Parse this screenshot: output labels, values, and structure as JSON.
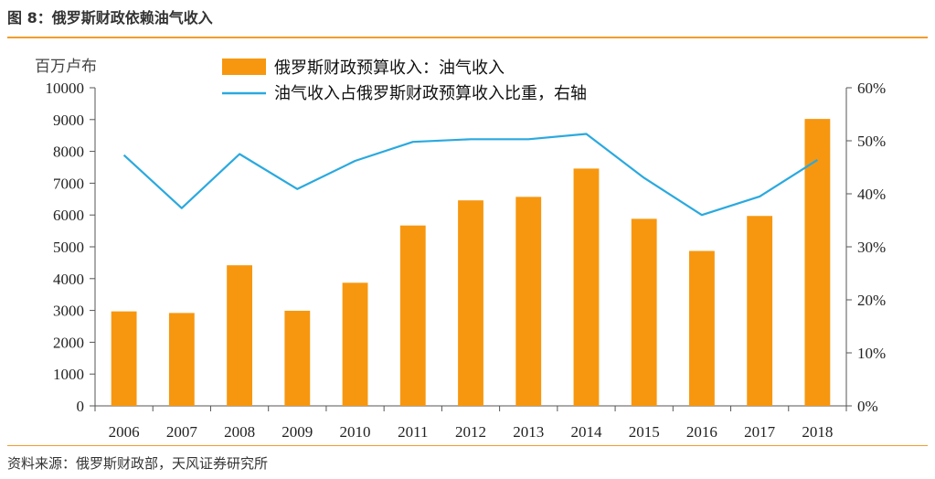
{
  "header": {
    "figure_title": "图 8：俄罗斯财政依赖油气收入"
  },
  "footer": {
    "source": "资料来源：俄罗斯财政部，天风证券研究所"
  },
  "colors": {
    "bar": "#f7970f",
    "line": "#2aa9df",
    "accent_rule": "#f39c2c",
    "axis": "#555555"
  },
  "chart_data": {
    "type": "bar",
    "categories": [
      "2006",
      "2007",
      "2008",
      "2009",
      "2010",
      "2011",
      "2012",
      "2013",
      "2014",
      "2015",
      "2016",
      "2017",
      "2018"
    ],
    "series": [
      {
        "name": "俄罗斯财政预算收入：油气收入",
        "type": "bar",
        "axis": "left",
        "values": [
          2970,
          2920,
          4420,
          2990,
          3870,
          5670,
          6460,
          6570,
          7460,
          5880,
          4870,
          5970,
          9020
        ]
      },
      {
        "name": "油气收入占俄罗斯财政预算收入比重，右轴",
        "type": "line",
        "axis": "right",
        "values": [
          47.3,
          37.3,
          47.5,
          40.9,
          46.2,
          49.8,
          50.3,
          50.3,
          51.3,
          43.0,
          36.0,
          39.5,
          46.4
        ]
      }
    ],
    "left_axis": {
      "label": "百万卢布",
      "ylim": [
        0,
        10000
      ],
      "ticks": [
        "0",
        "1000",
        "2000",
        "3000",
        "4000",
        "5000",
        "6000",
        "7000",
        "8000",
        "9000",
        "10000"
      ]
    },
    "right_axis": {
      "ylim": [
        0,
        60
      ],
      "ticks": [
        "0%",
        "10%",
        "20%",
        "30%",
        "40%",
        "50%",
        "60%"
      ]
    },
    "grid": false,
    "legend_position": "top-center"
  }
}
